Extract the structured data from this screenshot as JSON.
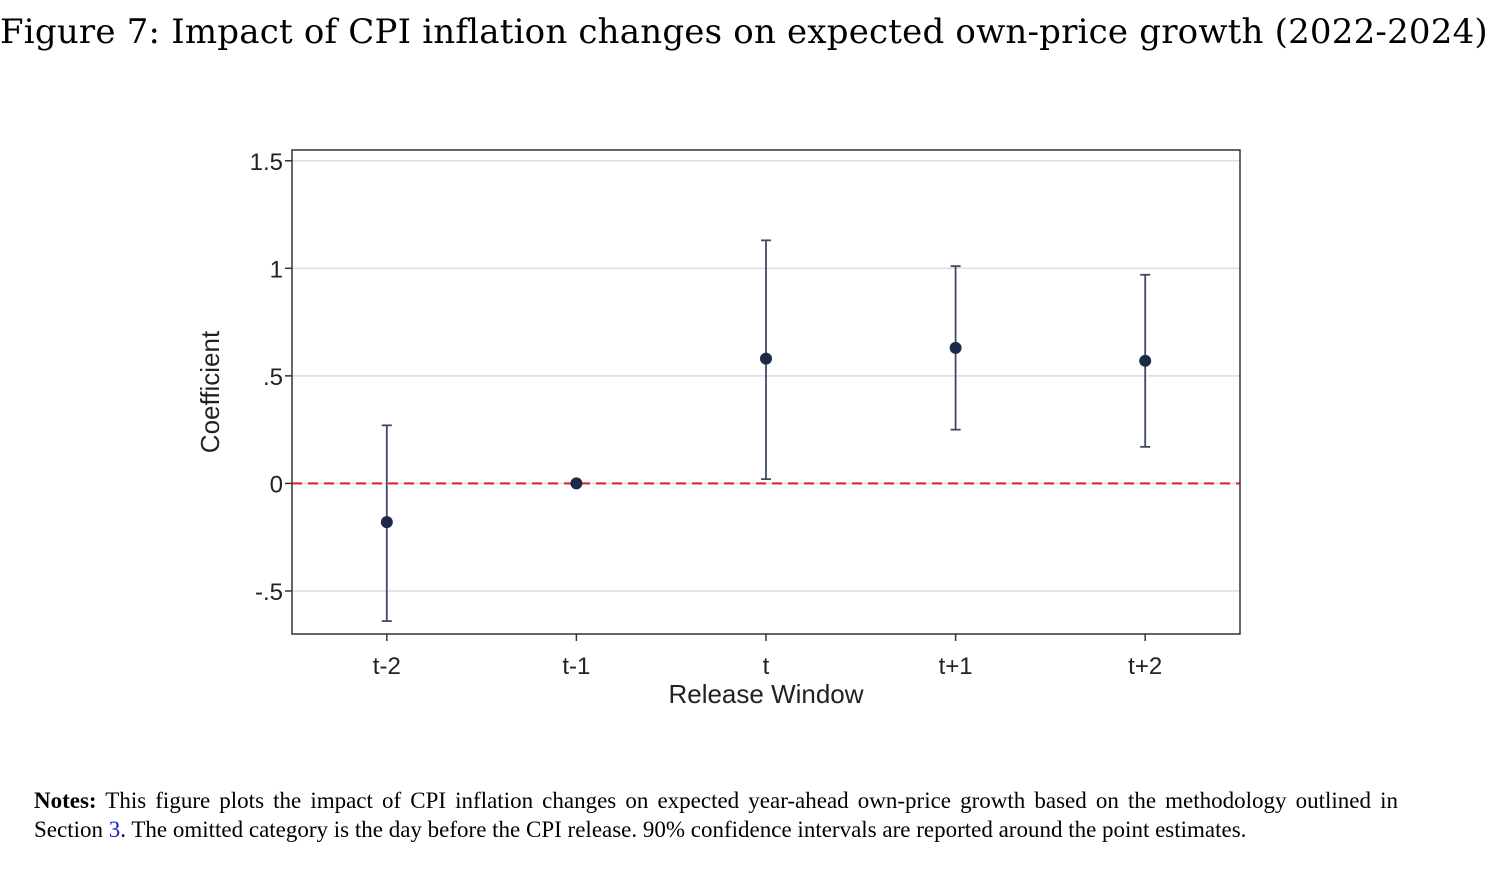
{
  "figure": {
    "title": "Figure 7: Impact of CPI inflation changes on expected own-price growth (2022-2024)"
  },
  "chart_data": {
    "type": "scatter",
    "title": "",
    "xlabel": "Release Window",
    "ylabel": "Coefficient",
    "categories": [
      "t-2",
      "t-1",
      "t",
      "t+1",
      "t+2"
    ],
    "series": [
      {
        "name": "Coefficient (90% CI)",
        "values": [
          -0.18,
          0.0,
          0.58,
          0.63,
          0.57
        ],
        "ci_low": [
          -0.64,
          0.0,
          0.02,
          0.25,
          0.17
        ],
        "ci_high": [
          0.27,
          0.0,
          1.13,
          1.01,
          0.97
        ]
      }
    ],
    "ylim": [
      -0.7,
      1.55
    ],
    "yticks": [
      -0.5,
      0,
      0.5,
      1,
      1.5
    ],
    "ytick_labels": [
      "-.5",
      "0",
      ".5",
      "1",
      "1.5"
    ],
    "reference_line": {
      "y": 0,
      "style": "dashed",
      "color": "#e8242b"
    },
    "grid": true,
    "colors": {
      "point": "#1b2a49",
      "errorbar": "#3f4a63",
      "grid": "#dcdcdc",
      "axis": "#333333"
    }
  },
  "notes": {
    "label": "Notes:",
    "text_before_ref": " This figure plots the impact of CPI inflation changes on expected year-ahead own-price growth based on the methodology outlined in Section ",
    "section_ref": "3",
    "text_after_ref": ". The omitted category is the day before the CPI release. 90% confidence intervals are reported around the point estimates."
  }
}
